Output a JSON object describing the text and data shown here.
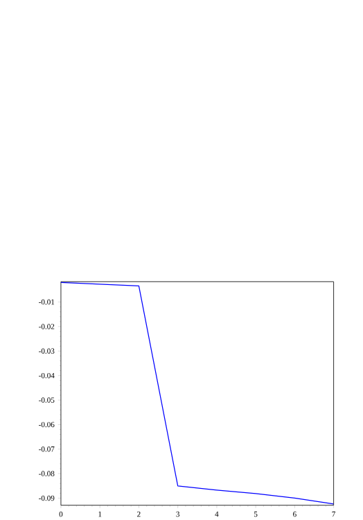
{
  "chart_data": {
    "type": "line",
    "x": [
      0,
      2,
      3,
      4,
      5,
      6,
      7
    ],
    "series": [
      {
        "color": "#0000ff",
        "values": [
          -0.002,
          -0.0034,
          -0.085,
          -0.0867,
          -0.0881,
          -0.09,
          -0.0924
        ]
      }
    ],
    "xlim": [
      0,
      7
    ],
    "ylim": [
      -0.0929,
      -0.0017
    ],
    "xticks": [
      0,
      1,
      2,
      3,
      4,
      5,
      6,
      7
    ],
    "yticks": [
      -0.09,
      -0.08,
      -0.07,
      -0.06,
      -0.05,
      -0.04,
      -0.03,
      -0.02,
      -0.01
    ],
    "grid": false,
    "marker": "none",
    "line_style": "solid"
  }
}
